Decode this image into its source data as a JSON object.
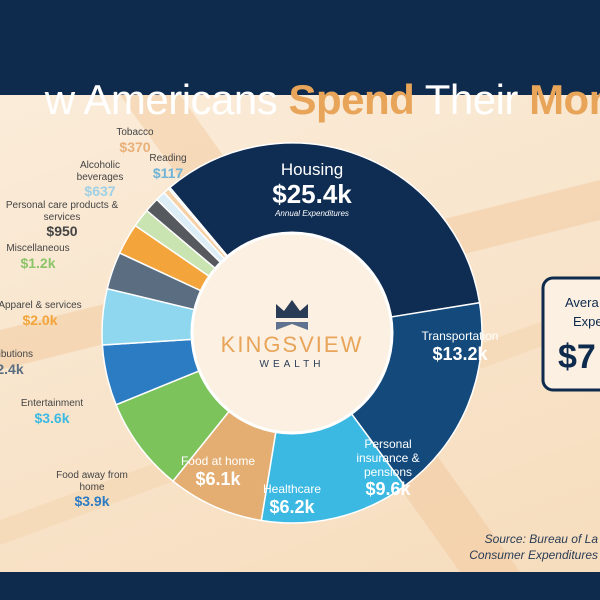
{
  "chart_data": {
    "type": "pie",
    "title": [
      "w Americans ",
      "Spend",
      " Their ",
      "Mon"
    ],
    "categories": [
      "Housing",
      "Transportation",
      "Personal insurance & pensions",
      "Healthcare",
      "Food at home",
      "Food away from home",
      "Entertainment",
      "ntributions",
      "Apparel & services",
      "Miscellaneous",
      "Personal care products & services",
      "Alcoholic beverages",
      "Tobacco",
      "Reading"
    ],
    "values": [
      25400,
      13200,
      9600,
      6200,
      6100,
      3900,
      3600,
      2400,
      2000,
      1200,
      950,
      637,
      370,
      117
    ],
    "value_labels": [
      "$25.4k",
      "$13.2k",
      "$9.6k",
      "$6.2k",
      "$6.1k",
      "$3.9k",
      "$3.6k",
      "2.4k",
      "$2.0k",
      "$1.2k",
      "$950",
      "$637",
      "$370",
      "$117"
    ],
    "colors": [
      "#0f2c52",
      "#144a7b",
      "#3cb9e2",
      "#e4ae72",
      "#7cc35c",
      "#2c7cc4",
      "#8fd7ef",
      "#5b6d80",
      "#f3a53b",
      "#c9e4b1",
      "#56595e",
      "#dcedf6",
      "#f6d0a6",
      "#b8e1f3"
    ],
    "annotation": "Annual Expenditures",
    "logo": {
      "name": "KINGSVIEW",
      "tagline": "WEALTH"
    },
    "summary_box": [
      "Avera",
      "Expe",
      "$7"
    ],
    "source": [
      "Source: Bureau of La",
      "Consumer Expenditures"
    ]
  }
}
